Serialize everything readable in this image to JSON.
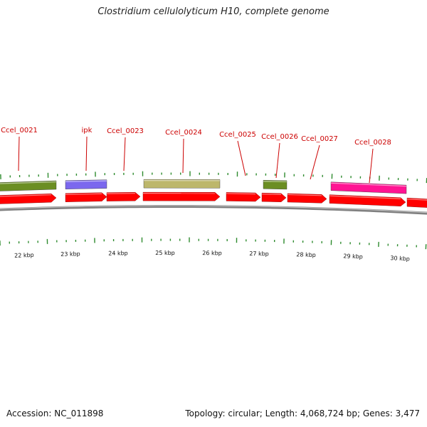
{
  "title": "Clostridium cellulolyticum H10, complete genome",
  "footer": {
    "accession": "Accession: NC_011898",
    "summary": "Topology: circular; Length: 4,068,724 bp; Genes: 3,477"
  },
  "colors": {
    "cds": "#ff0000",
    "backbone": "#808080",
    "tick": "#2e8b2e",
    "label": "#cc0000"
  },
  "scale": {
    "labels": [
      "22 kbp",
      "23 kbp",
      "24 kbp",
      "25 kbp",
      "26 kbp",
      "27 kbp",
      "28 kbp",
      "29 kbp",
      "30 kbp"
    ]
  },
  "genes": [
    {
      "label": "Ccel_0021",
      "color": "#6b8e23"
    },
    {
      "label": "ipk",
      "color": "#7b68ee"
    },
    {
      "label": "Ccel_0023",
      "color": ""
    },
    {
      "label": "Ccel_0024",
      "color": "#bdb76b"
    },
    {
      "label": "Ccel_0025",
      "color": ""
    },
    {
      "label": "Ccel_0026",
      "color": "#6b8e23"
    },
    {
      "label": "Ccel_0027",
      "color": ""
    },
    {
      "label": "Ccel_0028",
      "color": "#ff1493"
    }
  ]
}
